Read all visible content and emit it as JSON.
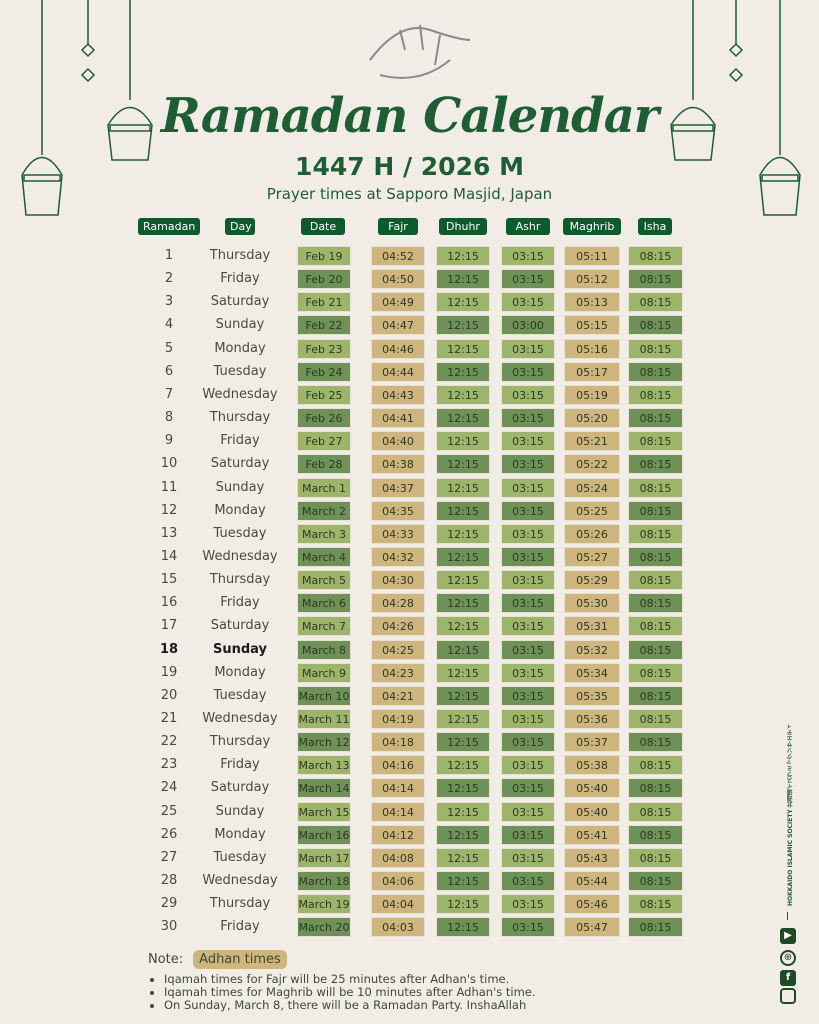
{
  "header": {
    "title": "Ramadan Calendar",
    "year": "1447 H / 2026 M",
    "subtitle": "Prayer times at Sapporo Masjid, Japan"
  },
  "columns": [
    "Ramadan",
    "Day",
    "Date",
    "Fajr",
    "Dhuhr",
    "Ashr",
    "Maghrib",
    "Isha"
  ],
  "colors": {
    "primary": "#0d5a2c",
    "light_green": "#9db56a",
    "dark_green": "#6e9157",
    "tan": "#cdb57d"
  },
  "highlight_row": 18,
  "rows": [
    [
      "1",
      "Thursday",
      "Feb 19",
      "04:52",
      "12:15",
      "03:15",
      "05:11",
      "08:15"
    ],
    [
      "2",
      "Friday",
      "Feb 20",
      "04:50",
      "12:15",
      "03:15",
      "05:12",
      "08:15"
    ],
    [
      "3",
      "Saturday",
      "Feb 21",
      "04:49",
      "12:15",
      "03:15",
      "05:13",
      "08:15"
    ],
    [
      "4",
      "Sunday",
      "Feb 22",
      "04:47",
      "12:15",
      "03:00",
      "05:15",
      "08:15"
    ],
    [
      "5",
      "Monday",
      "Feb 23",
      "04:46",
      "12:15",
      "03:15",
      "05:16",
      "08:15"
    ],
    [
      "6",
      "Tuesday",
      "Feb 24",
      "04:44",
      "12:15",
      "03:15",
      "05:17",
      "08:15"
    ],
    [
      "7",
      "Wednesday",
      "Feb 25",
      "04:43",
      "12:15",
      "03:15",
      "05:19",
      "08:15"
    ],
    [
      "8",
      "Thursday",
      "Feb 26",
      "04:41",
      "12:15",
      "03:15",
      "05:20",
      "08:15"
    ],
    [
      "9",
      "Friday",
      "Feb 27",
      "04:40",
      "12:15",
      "03:15",
      "05:21",
      "08:15"
    ],
    [
      "10",
      "Saturday",
      "Feb 28",
      "04:38",
      "12:15",
      "03:15",
      "05:22",
      "08:15"
    ],
    [
      "11",
      "Sunday",
      "March 1",
      "04:37",
      "12:15",
      "03:15",
      "05:24",
      "08:15"
    ],
    [
      "12",
      "Monday",
      "March 2",
      "04:35",
      "12:15",
      "03:15",
      "05:25",
      "08:15"
    ],
    [
      "13",
      "Tuesday",
      "March 3",
      "04:33",
      "12:15",
      "03:15",
      "05:26",
      "08:15"
    ],
    [
      "14",
      "Wednesday",
      "March 4",
      "04:32",
      "12:15",
      "03:15",
      "05:27",
      "08:15"
    ],
    [
      "15",
      "Thursday",
      "March 5",
      "04:30",
      "12:15",
      "03:15",
      "05:29",
      "08:15"
    ],
    [
      "16",
      "Friday",
      "March 6",
      "04:28",
      "12:15",
      "03:15",
      "05:30",
      "08:15"
    ],
    [
      "17",
      "Saturday",
      "March 7",
      "04:26",
      "12:15",
      "03:15",
      "05:31",
      "08:15"
    ],
    [
      "18",
      "Sunday",
      "March 8",
      "04:25",
      "12:15",
      "03:15",
      "05:32",
      "08:15"
    ],
    [
      "19",
      "Monday",
      "March 9",
      "04:23",
      "12:15",
      "03:15",
      "05:34",
      "08:15"
    ],
    [
      "20",
      "Tuesday",
      "March 10",
      "04:21",
      "12:15",
      "03:15",
      "05:35",
      "08:15"
    ],
    [
      "21",
      "Wednesday",
      "March 11",
      "04:19",
      "12:15",
      "03:15",
      "05:36",
      "08:15"
    ],
    [
      "22",
      "Thursday",
      "March 12",
      "04:18",
      "12:15",
      "03:15",
      "05:37",
      "08:15"
    ],
    [
      "23",
      "Friday",
      "March 13",
      "04:16",
      "12:15",
      "03:15",
      "05:38",
      "08:15"
    ],
    [
      "24",
      "Saturday",
      "March 14",
      "04:14",
      "12:15",
      "03:15",
      "05:40",
      "08:15"
    ],
    [
      "25",
      "Sunday",
      "March 15",
      "04:14",
      "12:15",
      "03:15",
      "05:40",
      "08:15"
    ],
    [
      "26",
      "Monday",
      "March 16",
      "04:12",
      "12:15",
      "03:15",
      "05:41",
      "08:15"
    ],
    [
      "27",
      "Tuesday",
      "March 17",
      "04:08",
      "12:15",
      "03:15",
      "05:43",
      "08:15"
    ],
    [
      "28",
      "Wednesday",
      "March 18",
      "04:06",
      "12:15",
      "03:15",
      "05:44",
      "08:15"
    ],
    [
      "29",
      "Thursday",
      "March 19",
      "04:04",
      "12:15",
      "03:15",
      "05:46",
      "08:15"
    ],
    [
      "30",
      "Friday",
      "March 20",
      "04:03",
      "12:15",
      "03:15",
      "05:47",
      "08:15"
    ]
  ],
  "notes": {
    "label": "Note:",
    "badge": "Adhan times",
    "items": [
      "Iqamah times for Fajr will be 25 minutes after Adhan's time.",
      "Iqamah times for Maghrib will be 10 minutes after Adhan's time.",
      "On Sunday, March 8, there will be a Ramadan Party. InshaAllah"
    ]
  },
  "organization": "HOKKAIDO ISLAMIC SOCIETY 北海道イスラミックソサエティ",
  "social_icons": [
    "youtube-icon",
    "globe-icon",
    "facebook-icon",
    "instagram-icon"
  ]
}
